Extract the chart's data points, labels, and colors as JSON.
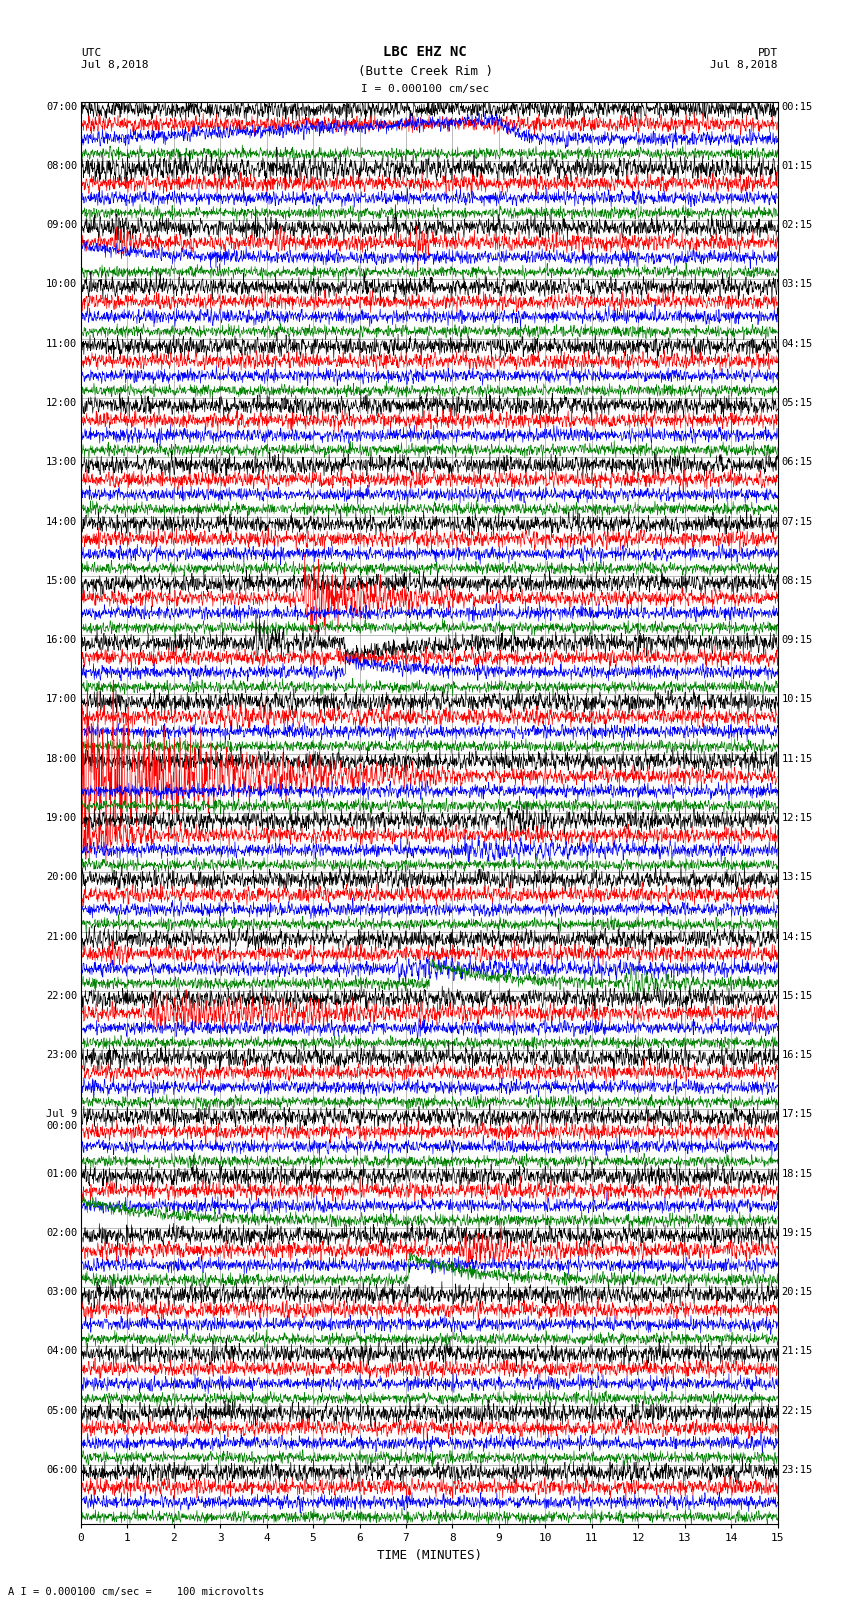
{
  "title_line1": "LBC EHZ NC",
  "title_line2": "(Butte Creek Rim )",
  "scale_label": "I = 0.000100 cm/sec",
  "utc_label": "UTC\nJul 8,2018",
  "pdt_label": "PDT\nJul 8,2018",
  "bottom_label": "A I = 0.000100 cm/sec =    100 microvolts",
  "xlabel": "TIME (MINUTES)",
  "xticks": [
    0,
    1,
    2,
    3,
    4,
    5,
    6,
    7,
    8,
    9,
    10,
    11,
    12,
    13,
    14,
    15
  ],
  "left_times": [
    "07:00",
    "08:00",
    "09:00",
    "10:00",
    "11:00",
    "12:00",
    "13:00",
    "14:00",
    "15:00",
    "16:00",
    "17:00",
    "18:00",
    "19:00",
    "20:00",
    "21:00",
    "22:00",
    "23:00",
    "Jul 9\n00:00",
    "01:00",
    "02:00",
    "03:00",
    "04:00",
    "05:00",
    "06:00"
  ],
  "right_times": [
    "00:15",
    "01:15",
    "02:15",
    "03:15",
    "04:15",
    "05:15",
    "06:15",
    "07:15",
    "08:15",
    "09:15",
    "10:15",
    "11:15",
    "12:15",
    "13:15",
    "14:15",
    "15:15",
    "16:15",
    "17:15",
    "18:15",
    "19:15",
    "20:15",
    "21:15",
    "22:15",
    "23:15"
  ],
  "n_rows": 24,
  "traces_per_row": 4,
  "colors": [
    "black",
    "red",
    "blue",
    "green"
  ],
  "bg_color": "#ffffff",
  "grid_color": "#888888",
  "figwidth": 8.5,
  "figheight": 16.13,
  "dpi": 100
}
